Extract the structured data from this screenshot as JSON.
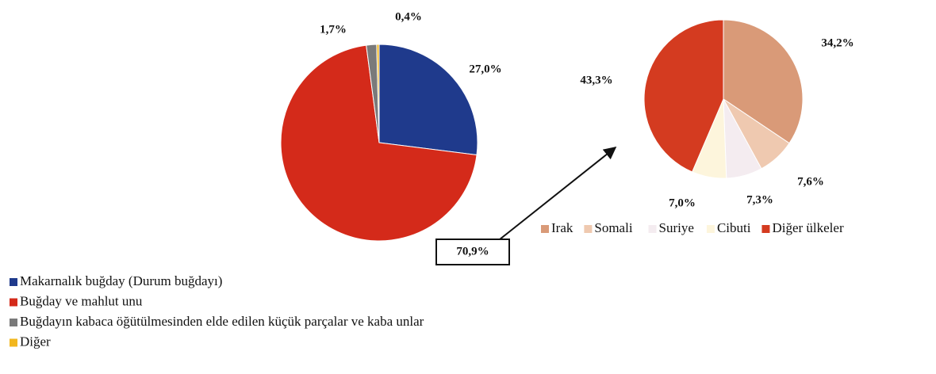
{
  "chart_data": [
    {
      "type": "pie",
      "categories": [
        "Makarnalık buğday (Durum buğdayı)",
        "Buğday ve mahlut unu",
        "Buğdayın kabaca öğütülmesinden elde edilen küçük parçalar ve kaba unlar",
        "Diğer"
      ],
      "values": [
        27.0,
        70.9,
        1.7,
        0.4
      ],
      "value_labels": [
        "27,0%",
        "70,9%",
        "1,7%",
        "0,4%"
      ],
      "colors": [
        "#1f3a8c",
        "#d42a1a",
        "#7a7a7a",
        "#f2b71f"
      ]
    },
    {
      "type": "pie",
      "categories": [
        "Irak",
        "Somali",
        "Suriye",
        "Cibuti",
        "Diğer ülkeler"
      ],
      "values": [
        34.2,
        7.6,
        7.3,
        7.0,
        43.3
      ],
      "value_labels": [
        "34,2%",
        "7,6%",
        "7,3%",
        "7,0%",
        "43,3%"
      ],
      "colors": [
        "#d99a78",
        "#efc9b0",
        "#f4ecf0",
        "#fdf5dc",
        "#d43b20"
      ]
    }
  ]
}
